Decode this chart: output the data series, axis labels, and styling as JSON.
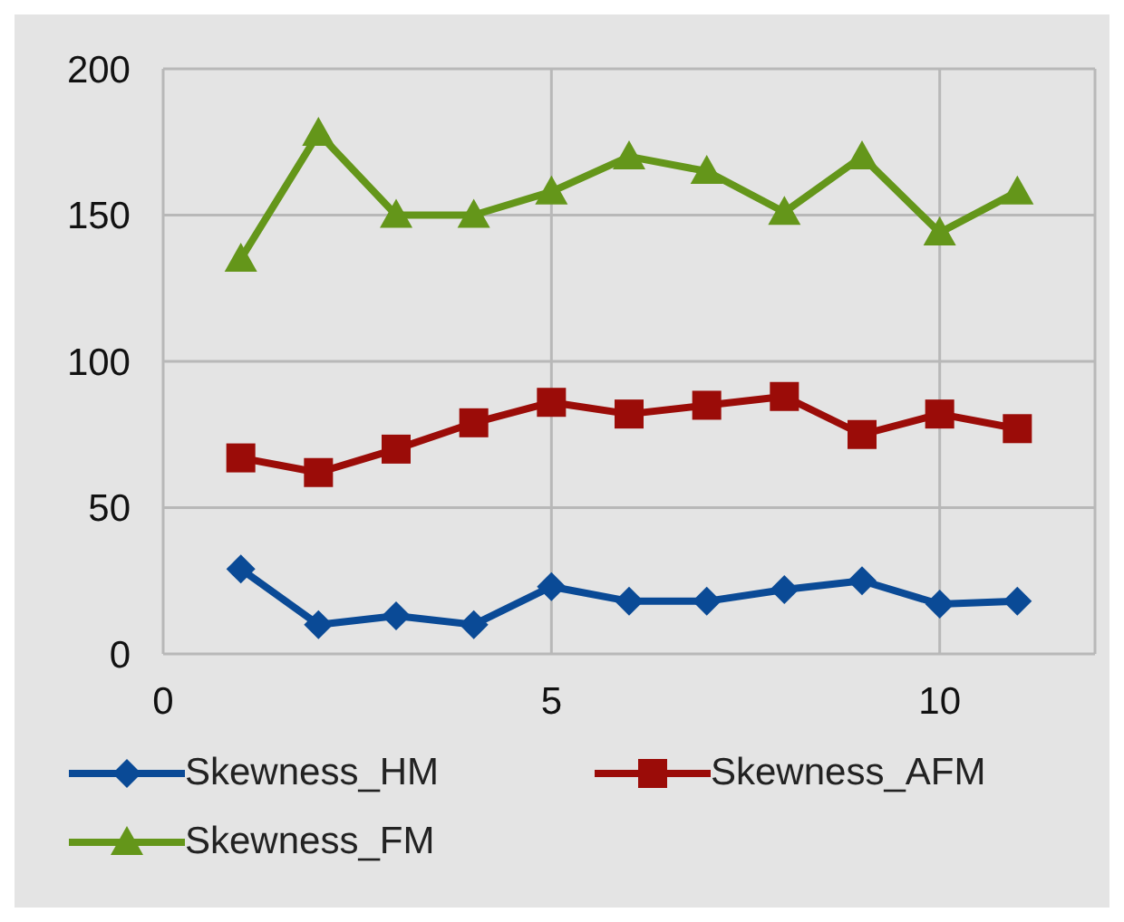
{
  "chart_data": {
    "type": "line",
    "xlim": [
      0,
      12
    ],
    "xticks": [
      0,
      5,
      10
    ],
    "ylim": [
      0,
      200
    ],
    "yticks": [
      0,
      50,
      100,
      150,
      200
    ],
    "grid": true,
    "legend": "bottom",
    "series": [
      {
        "name": "Skewness_HM",
        "color": "#0a4a96",
        "marker": "diamond",
        "x": [
          1,
          2,
          3,
          4,
          5,
          6,
          7,
          8,
          9,
          10,
          11
        ],
        "values": [
          29,
          10,
          13,
          10,
          23,
          18,
          18,
          22,
          25,
          17,
          18
        ]
      },
      {
        "name": "Skewness_AFM",
        "color": "#9b0c08",
        "marker": "square",
        "x": [
          1,
          2,
          3,
          4,
          5,
          6,
          7,
          8,
          9,
          10,
          11
        ],
        "values": [
          67,
          62,
          70,
          79,
          86,
          82,
          85,
          88,
          75,
          82,
          77
        ]
      },
      {
        "name": "Skewness_FM",
        "color": "#64961a",
        "marker": "triangle",
        "x": [
          1,
          2,
          3,
          4,
          5,
          6,
          7,
          8,
          9,
          10,
          11
        ],
        "values": [
          135,
          178,
          150,
          150,
          158,
          170,
          165,
          151,
          170,
          144,
          158
        ]
      }
    ]
  }
}
